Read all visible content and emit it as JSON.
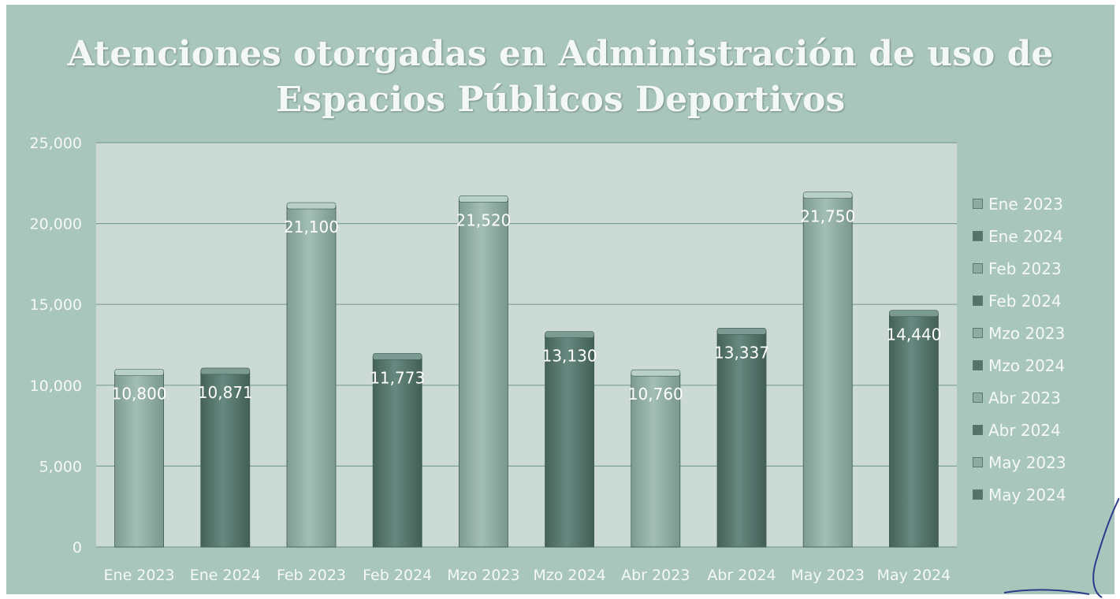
{
  "chart_data": {
    "type": "bar",
    "title": "Atenciones otorgadas en Administración de uso de Espacios Públicos Deportivos",
    "categories": [
      "Ene 2023",
      "Ene 2024",
      "Feb 2023",
      "Feb 2024",
      "Mzo 2023",
      "Mzo 2024",
      "Abr 2023",
      "Abr 2024",
      "May 2023",
      "May 2024"
    ],
    "values": [
      10800,
      10871,
      21100,
      11773,
      21520,
      13130,
      10760,
      13337,
      21750,
      14440
    ],
    "data_labels": [
      "10,800",
      "10,871",
      "21,100",
      "11,773",
      "21,520",
      "13,130",
      "10,760",
      "13,337",
      "21,750",
      "14,440"
    ],
    "yticks": [
      0,
      5000,
      10000,
      15000,
      20000,
      25000
    ],
    "ytick_labels": [
      "0",
      "5,000",
      "10,000",
      "15,000",
      "20,000",
      "25,000"
    ],
    "ylim": [
      0,
      25000
    ],
    "xlabel": "",
    "ylabel": "",
    "grid": true,
    "legend": {
      "placement": "right",
      "entries": [
        "Ene 2023",
        "Ene 2024",
        "Feb 2023",
        "Feb 2024",
        "Mzo 2023",
        "Mzo 2024",
        "Abr 2023",
        "Abr 2024",
        "May 2023",
        "May 2024"
      ]
    },
    "colors": {
      "bar_2023": "#8eaca2",
      "bar_2024": "#54736a",
      "background": "#a9c6bd",
      "plot_area": "#ccdad5",
      "gridline": "#7f9e94"
    }
  }
}
